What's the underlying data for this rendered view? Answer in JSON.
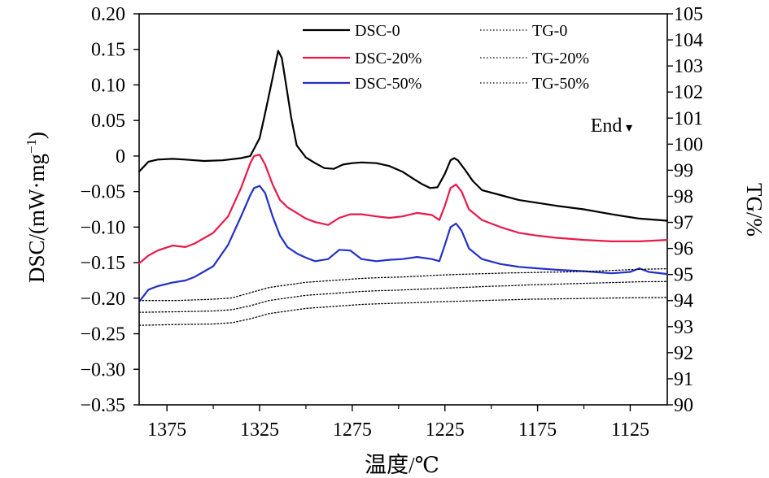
{
  "chart_data": {
    "type": "line",
    "xlabel": "温度/℃",
    "ylabel_left": "DSC/(mW·mg",
    "ylabel_left_sup": "−1",
    "ylabel_left_close": ")",
    "ylabel_right": "TG/%",
    "x_reversed": true,
    "xlim": [
      1390,
      1105
    ],
    "x_ticks": [
      1375,
      1325,
      1275,
      1225,
      1175,
      1125
    ],
    "x_tick_labels": [
      "1375",
      "1325",
      "1275",
      "1225",
      "1175",
      "1125"
    ],
    "ylim_left": [
      -0.35,
      0.2
    ],
    "y_ticks_left": [
      0.2,
      0.15,
      0.1,
      0.05,
      0,
      -0.05,
      -0.1,
      -0.15,
      -0.2,
      -0.25,
      -0.3,
      -0.35
    ],
    "y_tick_labels_left": [
      "0.20",
      "0.15",
      "0.10",
      "0.05",
      "0",
      "−0.05",
      "−0.10",
      "−0.15",
      "−0.20",
      "−0.25",
      "−0.30",
      "−0.35"
    ],
    "ylim_right": [
      90,
      105
    ],
    "y_ticks_right": [
      105,
      104,
      103,
      102,
      101,
      100,
      99,
      98,
      97,
      96,
      95,
      94,
      93,
      92,
      91,
      90
    ],
    "y_tick_labels_right": [
      "105",
      "104",
      "103",
      "102",
      "101",
      "100",
      "99",
      "98",
      "97",
      "96",
      "95",
      "94",
      "93",
      "92",
      "91",
      "90"
    ],
    "legend_position": "top",
    "series": [
      {
        "name": "DSC-0",
        "axis": "left",
        "color": "#000000",
        "style": "solid",
        "x": [
          1390,
          1385,
          1380,
          1372,
          1365,
          1355,
          1345,
          1335,
          1330,
          1325,
          1322,
          1318,
          1315,
          1313,
          1311,
          1308,
          1305,
          1300,
          1295,
          1290,
          1285,
          1280,
          1275,
          1270,
          1262,
          1255,
          1248,
          1242,
          1237,
          1233,
          1229,
          1225,
          1222,
          1220,
          1218,
          1214,
          1210,
          1205,
          1195,
          1185,
          1175,
          1165,
          1150,
          1135,
          1120,
          1105
        ],
        "y": [
          -0.022,
          -0.008,
          -0.005,
          -0.004,
          -0.005,
          -0.007,
          -0.006,
          -0.003,
          0.0,
          0.025,
          0.06,
          0.11,
          0.148,
          0.138,
          0.105,
          0.055,
          0.015,
          -0.002,
          -0.01,
          -0.017,
          -0.018,
          -0.012,
          -0.01,
          -0.009,
          -0.01,
          -0.014,
          -0.022,
          -0.032,
          -0.04,
          -0.045,
          -0.044,
          -0.025,
          -0.006,
          -0.003,
          -0.006,
          -0.02,
          -0.035,
          -0.048,
          -0.055,
          -0.062,
          -0.066,
          -0.07,
          -0.075,
          -0.082,
          -0.088,
          -0.091
        ]
      },
      {
        "name": "DSC-20%",
        "axis": "left",
        "color": "#e8194a",
        "style": "solid",
        "x": [
          1390,
          1385,
          1380,
          1372,
          1365,
          1360,
          1350,
          1342,
          1335,
          1330,
          1328,
          1325,
          1322,
          1318,
          1314,
          1310,
          1305,
          1300,
          1295,
          1288,
          1282,
          1276,
          1270,
          1262,
          1255,
          1248,
          1240,
          1232,
          1228,
          1225,
          1222,
          1219,
          1216,
          1212,
          1205,
          1195,
          1185,
          1175,
          1165,
          1150,
          1135,
          1120,
          1105
        ],
        "y": [
          -0.151,
          -0.14,
          -0.133,
          -0.126,
          -0.128,
          -0.123,
          -0.108,
          -0.085,
          -0.045,
          -0.01,
          0.0,
          0.002,
          -0.012,
          -0.04,
          -0.062,
          -0.072,
          -0.08,
          -0.088,
          -0.093,
          -0.097,
          -0.087,
          -0.082,
          -0.082,
          -0.085,
          -0.087,
          -0.085,
          -0.08,
          -0.083,
          -0.09,
          -0.07,
          -0.045,
          -0.04,
          -0.05,
          -0.075,
          -0.09,
          -0.1,
          -0.108,
          -0.112,
          -0.115,
          -0.118,
          -0.12,
          -0.12,
          -0.118
        ]
      },
      {
        "name": "DSC-50%",
        "axis": "left",
        "color": "#2130c8",
        "style": "solid",
        "x": [
          1390,
          1385,
          1380,
          1372,
          1365,
          1360,
          1350,
          1342,
          1335,
          1330,
          1328,
          1325,
          1322,
          1318,
          1314,
          1310,
          1305,
          1300,
          1295,
          1288,
          1282,
          1276,
          1270,
          1262,
          1255,
          1248,
          1240,
          1232,
          1228,
          1225,
          1222,
          1219,
          1216,
          1212,
          1205,
          1195,
          1185,
          1175,
          1165,
          1150,
          1135,
          1125,
          1120,
          1115,
          1105
        ],
        "y": [
          -0.205,
          -0.188,
          -0.183,
          -0.178,
          -0.175,
          -0.17,
          -0.155,
          -0.125,
          -0.085,
          -0.055,
          -0.045,
          -0.042,
          -0.052,
          -0.085,
          -0.112,
          -0.128,
          -0.137,
          -0.143,
          -0.148,
          -0.145,
          -0.132,
          -0.133,
          -0.145,
          -0.148,
          -0.146,
          -0.145,
          -0.142,
          -0.145,
          -0.148,
          -0.125,
          -0.1,
          -0.095,
          -0.105,
          -0.13,
          -0.145,
          -0.152,
          -0.156,
          -0.158,
          -0.16,
          -0.162,
          -0.165,
          -0.163,
          -0.158,
          -0.163,
          -0.166
        ]
      },
      {
        "name": "TG-0",
        "axis": "right",
        "color": "#000000",
        "style": "dotted",
        "x": [
          1390,
          1370,
          1350,
          1340,
          1330,
          1320,
          1310,
          1300,
          1290,
          1280,
          1270,
          1260,
          1250,
          1240,
          1230,
          1220,
          1210,
          1200,
          1190,
          1180,
          1170,
          1160,
          1150,
          1140,
          1130,
          1120,
          1105
        ],
        "y": [
          94.0,
          94.0,
          94.05,
          94.1,
          94.3,
          94.5,
          94.6,
          94.7,
          94.75,
          94.8,
          94.85,
          94.88,
          94.9,
          94.93,
          94.97,
          95.0,
          95.02,
          95.04,
          95.06,
          95.07,
          95.09,
          95.1,
          95.12,
          95.14,
          95.17,
          95.2,
          95.22
        ]
      },
      {
        "name": "TG-20%",
        "axis": "right",
        "color": "#000000",
        "style": "dotted",
        "x": [
          1390,
          1370,
          1350,
          1340,
          1330,
          1320,
          1310,
          1300,
          1290,
          1280,
          1270,
          1260,
          1250,
          1240,
          1230,
          1220,
          1210,
          1200,
          1190,
          1180,
          1170,
          1160,
          1150,
          1140,
          1130,
          1120,
          1105
        ],
        "y": [
          93.55,
          93.57,
          93.6,
          93.65,
          93.8,
          94.0,
          94.1,
          94.2,
          94.25,
          94.3,
          94.35,
          94.38,
          94.4,
          94.43,
          94.46,
          94.49,
          94.52,
          94.55,
          94.57,
          94.6,
          94.62,
          94.64,
          94.66,
          94.68,
          94.7,
          94.72,
          94.73
        ]
      },
      {
        "name": "TG-50%",
        "axis": "right",
        "color": "#000000",
        "style": "dotted",
        "x": [
          1390,
          1370,
          1350,
          1340,
          1330,
          1320,
          1310,
          1300,
          1290,
          1280,
          1270,
          1260,
          1250,
          1240,
          1230,
          1220,
          1210,
          1200,
          1190,
          1180,
          1170,
          1160,
          1150,
          1140,
          1130,
          1120,
          1105
        ],
        "y": [
          93.05,
          93.08,
          93.1,
          93.15,
          93.3,
          93.5,
          93.6,
          93.7,
          93.75,
          93.8,
          93.85,
          93.88,
          93.9,
          93.92,
          93.95,
          93.97,
          93.99,
          94.01,
          94.03,
          94.05,
          94.06,
          94.07,
          94.08,
          94.09,
          94.1,
          94.11,
          94.12
        ]
      }
    ],
    "annotations": [
      {
        "text": "End",
        "x": 1130,
        "y_left": 0.032,
        "marker": "triangle-down"
      }
    ]
  }
}
